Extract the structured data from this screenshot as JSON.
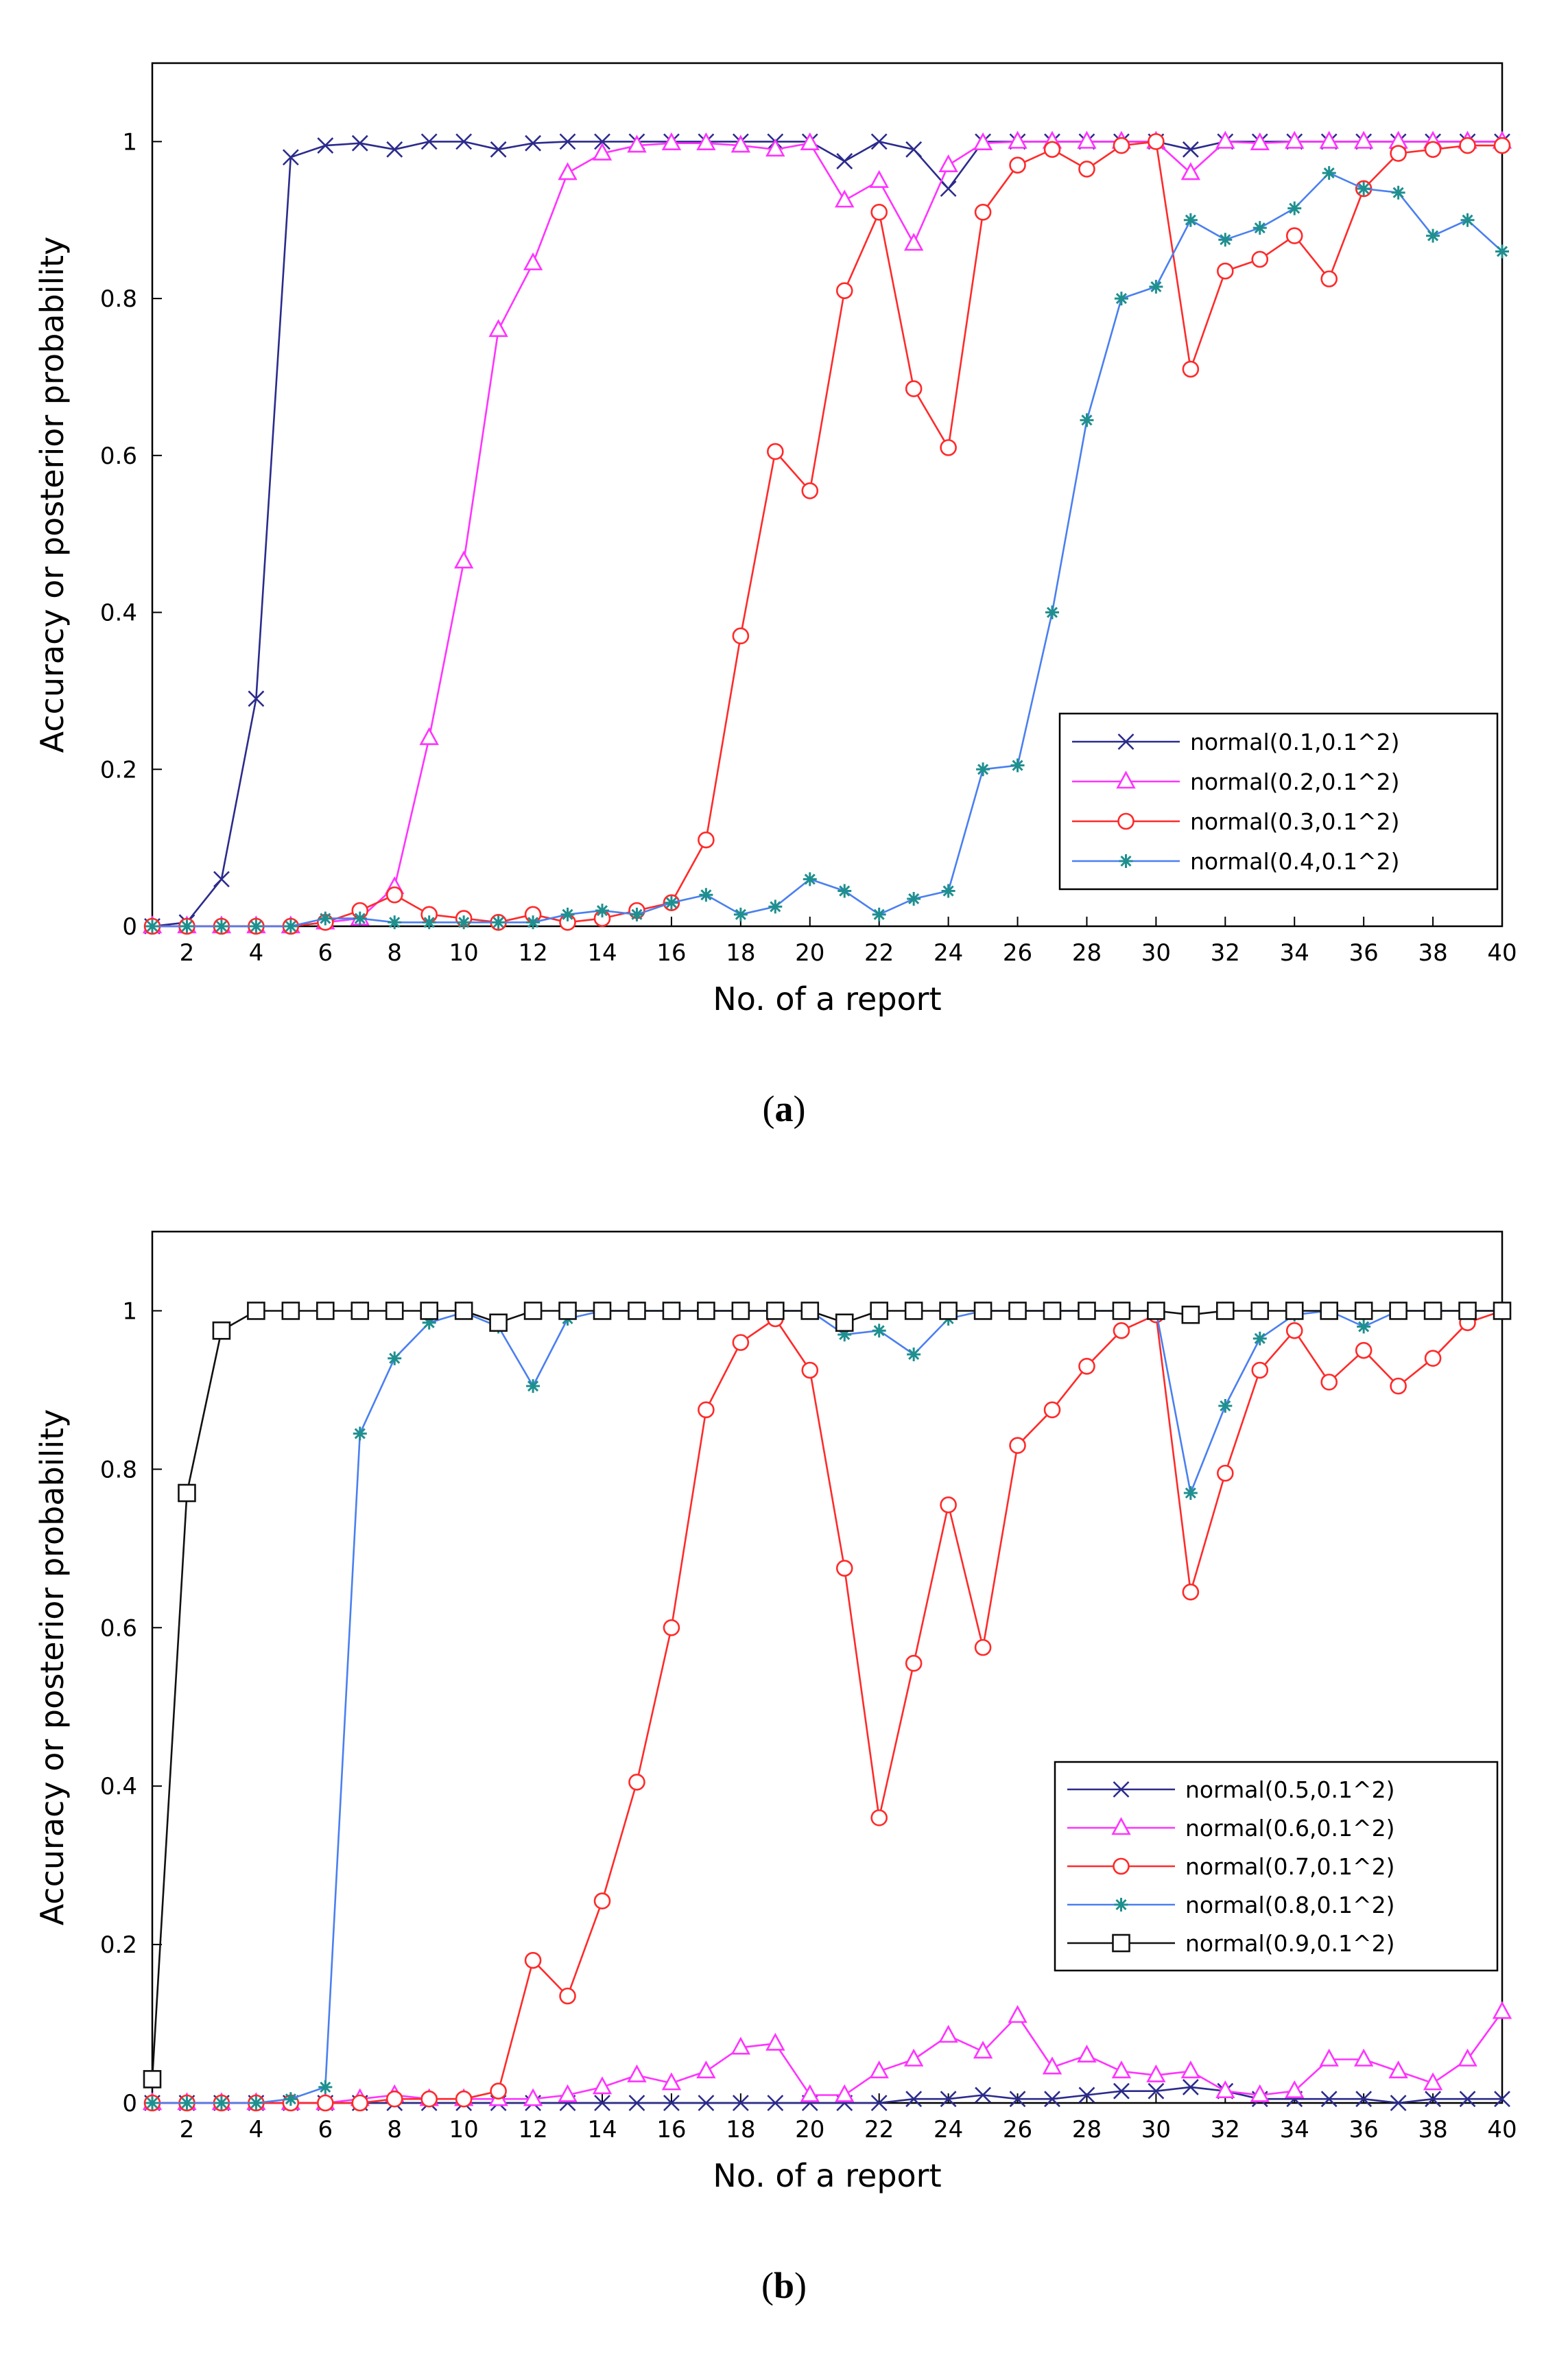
{
  "chart_data": [
    {
      "id": "a",
      "type": "line",
      "caption_letter": "a",
      "xlabel": "No. of a report",
      "ylabel": "Accuracy or posterior probability",
      "xlim": [
        1,
        40
      ],
      "ylim": [
        0,
        1.1
      ],
      "xticks": [
        2,
        4,
        6,
        8,
        10,
        12,
        14,
        16,
        18,
        20,
        22,
        24,
        26,
        28,
        30,
        32,
        34,
        36,
        38,
        40
      ],
      "yticks": [
        0,
        0.2,
        0.4,
        0.6,
        0.8,
        1
      ],
      "ytick_labels": [
        "0",
        "0.2",
        "0.4",
        "0.6",
        "0.8",
        "1"
      ],
      "legend_position": "bottom-right",
      "x": [
        1,
        2,
        3,
        4,
        5,
        6,
        7,
        8,
        9,
        10,
        11,
        12,
        13,
        14,
        15,
        16,
        17,
        18,
        19,
        20,
        21,
        22,
        23,
        24,
        25,
        26,
        27,
        28,
        29,
        30,
        31,
        32,
        33,
        34,
        35,
        36,
        37,
        38,
        39,
        40
      ],
      "series": [
        {
          "name": "normal(0.1,0.1^2)",
          "color": "#2b2b8c",
          "marker": "x",
          "values": [
            0,
            0.005,
            0.06,
            0.29,
            0.98,
            0.995,
            0.998,
            0.99,
            1.0,
            1.0,
            0.99,
            0.998,
            1.0,
            1.0,
            1.0,
            1.0,
            1.0,
            1.0,
            1.0,
            1.0,
            0.975,
            1.0,
            0.99,
            0.94,
            1.0,
            1.0,
            1.0,
            1.0,
            1.0,
            1.0,
            0.99,
            1.0,
            1.0,
            1.0,
            1.0,
            1.0,
            1.0,
            1.0,
            1.0,
            1.0
          ]
        },
        {
          "name": "normal(0.2,0.1^2)",
          "color": "#ff33ff",
          "marker": "triangle",
          "values": [
            0,
            0,
            0,
            0,
            0,
            0.005,
            0.01,
            0.05,
            0.24,
            0.465,
            0.76,
            0.845,
            0.96,
            0.985,
            0.995,
            0.998,
            0.998,
            0.995,
            0.99,
            0.998,
            0.925,
            0.95,
            0.87,
            0.97,
            0.998,
            1.0,
            1.0,
            1.0,
            1.0,
            1.0,
            0.96,
            1.0,
            0.998,
            1.0,
            1.0,
            1.0,
            1.0,
            1.0,
            1.0,
            1.0
          ]
        },
        {
          "name": "normal(0.3,0.1^2)",
          "color": "#ff2a2a",
          "marker": "circle",
          "values": [
            0,
            0,
            0,
            0,
            0,
            0.005,
            0.02,
            0.04,
            0.015,
            0.01,
            0.005,
            0.015,
            0.005,
            0.01,
            0.02,
            0.03,
            0.11,
            0.37,
            0.605,
            0.555,
            0.81,
            0.91,
            0.685,
            0.61,
            0.91,
            0.97,
            0.99,
            0.965,
            0.995,
            1.0,
            0.71,
            0.835,
            0.85,
            0.88,
            0.825,
            0.94,
            0.985,
            0.99,
            0.995,
            0.995
          ]
        },
        {
          "name": "normal(0.4,0.1^2)",
          "color": "#4a7ff0",
          "marker": "star",
          "values": [
            0,
            0,
            0,
            0,
            0,
            0.01,
            0.01,
            0.005,
            0.005,
            0.005,
            0.005,
            0.005,
            0.015,
            0.02,
            0.015,
            0.03,
            0.04,
            0.015,
            0.025,
            0.06,
            0.045,
            0.015,
            0.035,
            0.045,
            0.2,
            0.205,
            0.4,
            0.645,
            0.8,
            0.815,
            0.9,
            0.875,
            0.89,
            0.915,
            0.96,
            0.94,
            0.935,
            0.88,
            0.9,
            0.86
          ]
        }
      ]
    },
    {
      "id": "b",
      "type": "line",
      "caption_letter": "b",
      "xlabel": "No. of a report",
      "ylabel": "Accuracy or posterior probability",
      "xlim": [
        1,
        40
      ],
      "ylim": [
        0,
        1.1
      ],
      "xticks": [
        2,
        4,
        6,
        8,
        10,
        12,
        14,
        16,
        18,
        20,
        22,
        24,
        26,
        28,
        30,
        32,
        34,
        36,
        38,
        40
      ],
      "yticks": [
        0,
        0.2,
        0.4,
        0.6,
        0.8,
        1
      ],
      "ytick_labels": [
        "0",
        "0.2",
        "0.4",
        "0.6",
        "0.8",
        "1"
      ],
      "legend_position": "bottom-right",
      "x": [
        1,
        2,
        3,
        4,
        5,
        6,
        7,
        8,
        9,
        10,
        11,
        12,
        13,
        14,
        15,
        16,
        17,
        18,
        19,
        20,
        21,
        22,
        23,
        24,
        25,
        26,
        27,
        28,
        29,
        30,
        31,
        32,
        33,
        34,
        35,
        36,
        37,
        38,
        39,
        40
      ],
      "series": [
        {
          "name": "normal(0.5,0.1^2)",
          "color": "#2b2b8c",
          "marker": "x",
          "values": [
            0,
            0,
            0,
            0,
            0,
            0,
            0,
            0,
            0,
            0,
            0,
            0,
            0,
            0,
            0,
            0,
            0,
            0,
            0,
            0,
            0,
            0,
            0.005,
            0.005,
            0.01,
            0.005,
            0.005,
            0.01,
            0.015,
            0.015,
            0.02,
            0.015,
            0.005,
            0.005,
            0.005,
            0.005,
            0,
            0.005,
            0.005,
            0.005
          ]
        },
        {
          "name": "normal(0.6,0.1^2)",
          "color": "#ff33ff",
          "marker": "triangle",
          "values": [
            0,
            0,
            0,
            0,
            0,
            0,
            0.005,
            0.01,
            0.005,
            0.005,
            0.005,
            0.005,
            0.01,
            0.02,
            0.035,
            0.025,
            0.04,
            0.07,
            0.075,
            0.01,
            0.01,
            0.04,
            0.055,
            0.085,
            0.065,
            0.11,
            0.045,
            0.06,
            0.04,
            0.035,
            0.04,
            0.015,
            0.01,
            0.015,
            0.055,
            0.055,
            0.04,
            0.025,
            0.055,
            0.115
          ]
        },
        {
          "name": "normal(0.7,0.1^2)",
          "color": "#ff2a2a",
          "marker": "circle",
          "values": [
            0,
            0,
            0,
            0,
            0,
            0,
            0,
            0.005,
            0.005,
            0.005,
            0.015,
            0.18,
            0.135,
            0.255,
            0.405,
            0.6,
            0.875,
            0.96,
            0.99,
            0.925,
            0.675,
            0.36,
            0.555,
            0.755,
            0.575,
            0.83,
            0.875,
            0.93,
            0.975,
            0.995,
            0.645,
            0.795,
            0.925,
            0.975,
            0.91,
            0.95,
            0.905,
            0.94,
            0.985,
            1.0
          ]
        },
        {
          "name": "normal(0.8,0.1^2)",
          "color": "#4a7ff0",
          "marker": "star",
          "values": [
            0,
            0,
            0,
            0,
            0.005,
            0.02,
            0.845,
            0.94,
            0.985,
            0.998,
            0.98,
            0.905,
            0.99,
            1.0,
            1.0,
            1.0,
            1.0,
            1.0,
            1.0,
            1.0,
            0.97,
            0.975,
            0.945,
            0.99,
            1.0,
            1.0,
            1.0,
            1.0,
            1.0,
            1.0,
            0.77,
            0.88,
            0.965,
            0.995,
            1.0,
            0.98,
            1.0,
            1.0,
            1.0,
            1.0
          ]
        },
        {
          "name": "normal(0.9,0.1^2)",
          "color": "#111111",
          "marker": "square",
          "values": [
            0.03,
            0.77,
            0.975,
            1.0,
            1.0,
            1.0,
            1.0,
            1.0,
            1.0,
            1.0,
            0.985,
            1.0,
            1.0,
            1.0,
            1.0,
            1.0,
            1.0,
            1.0,
            1.0,
            1.0,
            0.985,
            1.0,
            1.0,
            1.0,
            1.0,
            1.0,
            1.0,
            1.0,
            1.0,
            1.0,
            0.995,
            1.0,
            1.0,
            1.0,
            1.0,
            1.0,
            1.0,
            1.0,
            1.0,
            1.0
          ]
        }
      ]
    }
  ]
}
